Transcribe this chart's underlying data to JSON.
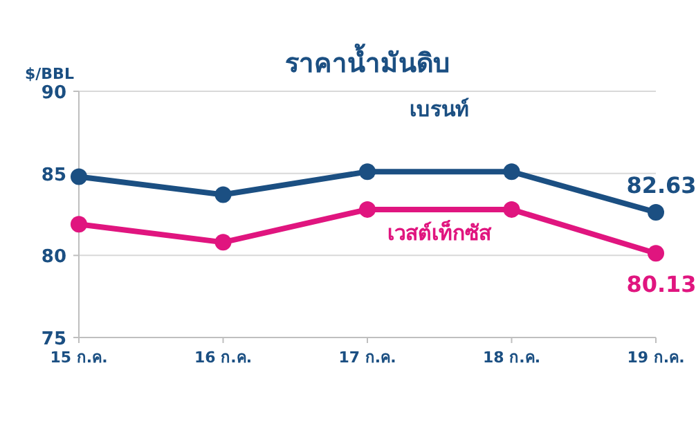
{
  "chart_data": {
    "type": "line",
    "title": "ราคาน้ำมันดิบ",
    "ylabel": "$/BBL",
    "categories": [
      "15 ก.ค.",
      "16 ก.ค.",
      "17 ก.ค.",
      "18 ก.ค.",
      "19 ก.ค."
    ],
    "series": [
      {
        "name": "เบรนท์",
        "color": "#1b4f82",
        "values": [
          84.8,
          83.7,
          85.1,
          85.1,
          82.63
        ],
        "value_labels": [
          null,
          null,
          null,
          null,
          "82.63"
        ]
      },
      {
        "name": "เวสต์เท็กซัส",
        "color": "#e0157f",
        "values": [
          81.9,
          80.8,
          82.8,
          82.8,
          80.13
        ],
        "value_labels": [
          null,
          null,
          null,
          null,
          "80.13"
        ]
      }
    ],
    "ylim": [
      75,
      90
    ],
    "yticks": [
      75,
      80,
      85,
      90
    ],
    "grid": "y",
    "legend": false,
    "marker": "circle",
    "line_style": "solid"
  }
}
